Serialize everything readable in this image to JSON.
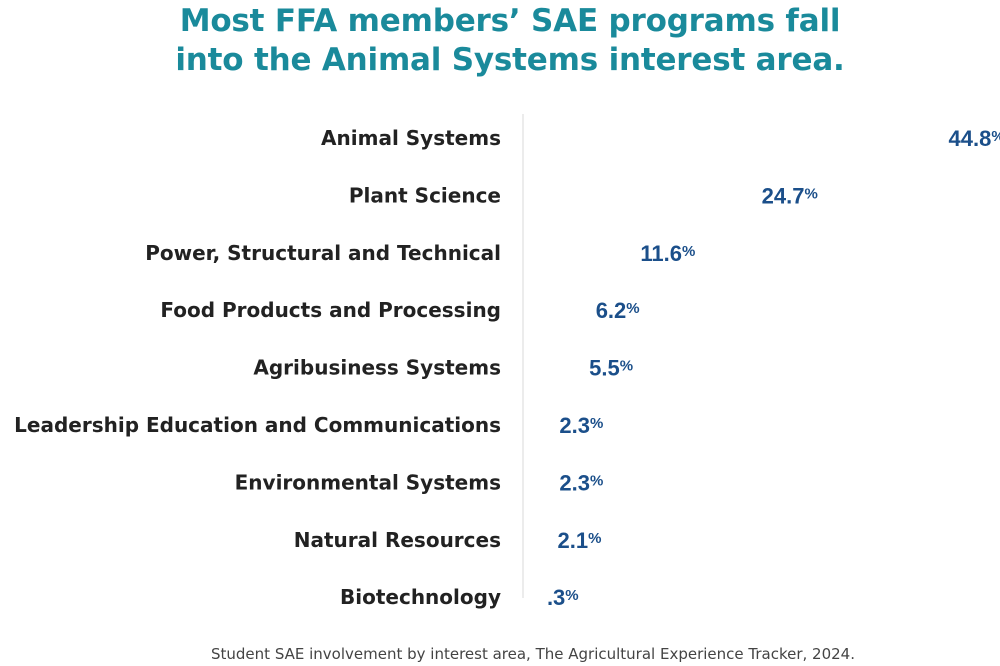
{
  "title_lines": [
    "Most FFA members’ SAE programs fall",
    "into the Animal Systems interest area."
  ],
  "source_note": "Student SAE involvement by interest area, The Agricultural Experience Tracker, 2024.",
  "colors": {
    "title": "#1a8a9b",
    "value": "#1b4f8a",
    "label": "#222222",
    "axis": "#d8d8d8",
    "note": "#444444"
  },
  "chart_data": {
    "type": "bar",
    "orientation": "horizontal",
    "title": "Most FFA members’ SAE programs fall into the Animal Systems interest area.",
    "categories": [
      "Animal Systems",
      "Plant Science",
      "Power, Structural and Technical",
      "Food Products and Processing",
      "Agribusiness Systems",
      "Leadership Education and Communications",
      "Environmental Systems",
      "Natural Resources",
      "Biotechnology"
    ],
    "values": [
      44.8,
      24.7,
      11.6,
      6.2,
      5.5,
      2.3,
      2.3,
      2.1,
      0.3
    ],
    "value_labels": [
      "44.8",
      "24.7",
      "11.6",
      "6.2",
      "5.5",
      "2.3",
      "2.3",
      "2.1",
      ".3"
    ],
    "unit_suffix": "%",
    "xlim": [
      0,
      50
    ],
    "grid": false,
    "legend": "none"
  }
}
